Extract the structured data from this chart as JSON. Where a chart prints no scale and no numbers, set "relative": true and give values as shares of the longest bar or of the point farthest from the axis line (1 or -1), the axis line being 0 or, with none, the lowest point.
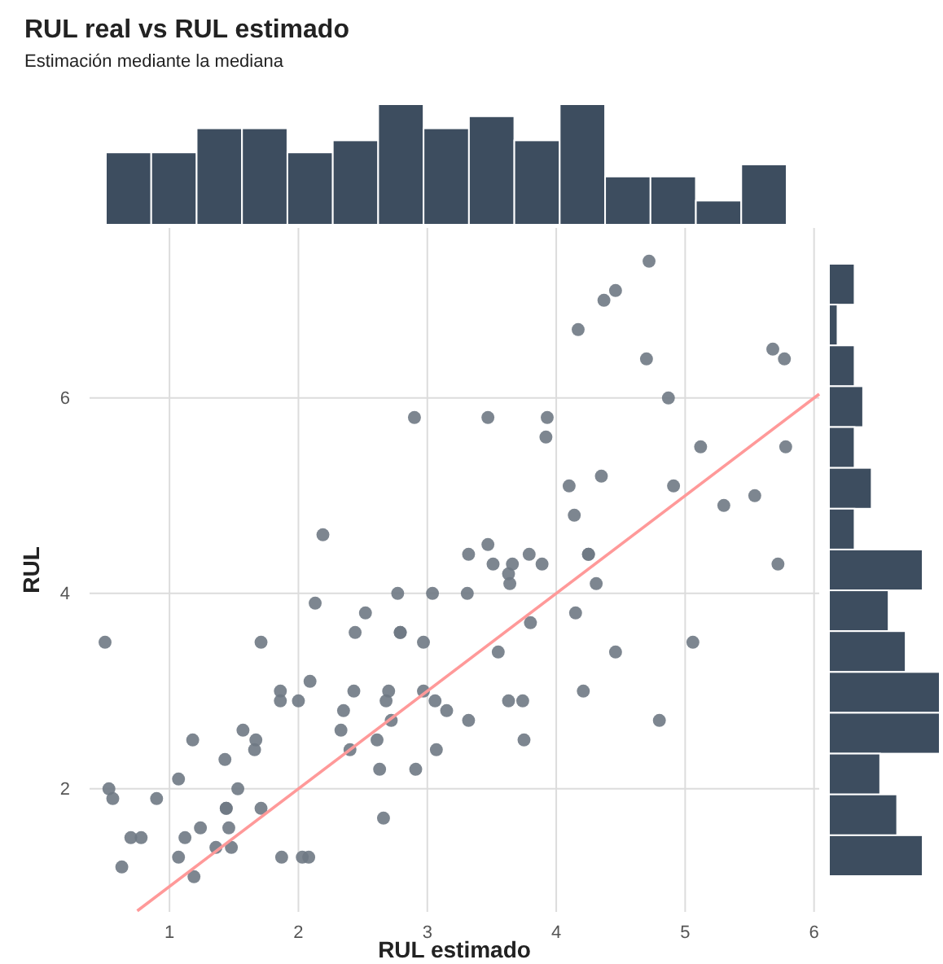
{
  "chart_data": [
    {
      "type": "scatter",
      "xlabel": "RUL estimado",
      "ylabel": "RUL",
      "xlim": [
        0.38,
        6.04
      ],
      "ylim": [
        0.74,
        7.74
      ],
      "xticks": [
        1,
        2,
        3,
        4,
        5,
        6
      ],
      "yticks": [
        2,
        4,
        6
      ],
      "grid": true,
      "series": [
        {
          "type": "scatter",
          "marker": "circle",
          "color": "#6f7984",
          "x": [
            0.5,
            0.53,
            0.56,
            0.7,
            0.78,
            0.63,
            0.9,
            1.07,
            1.07,
            1.12,
            1.19,
            1.18,
            1.24,
            1.36,
            1.43,
            1.44,
            1.44,
            1.46,
            1.48,
            1.53,
            1.57,
            1.66,
            1.67,
            1.71,
            1.71,
            1.86,
            1.86,
            1.87,
            2.0,
            2.03,
            2.08,
            2.09,
            2.13,
            2.33,
            2.35,
            2.4,
            2.43,
            2.44,
            2.52,
            2.61,
            2.63,
            2.66,
            2.68,
            2.7,
            2.72,
            2.77,
            2.79,
            2.79,
            2.91,
            2.97,
            2.97,
            3.04,
            3.06,
            3.07,
            3.15,
            3.32,
            3.31,
            3.32,
            3.51,
            3.55,
            3.63,
            3.64,
            3.66,
            3.63,
            3.74,
            3.75,
            3.79,
            3.8,
            3.89,
            4.15,
            4.21,
            4.25,
            4.25,
            4.31,
            4.46,
            4.8,
            5.06,
            5.72,
            3.47,
            3.93,
            3.92,
            4.1,
            4.14,
            4.35,
            4.17,
            4.37,
            4.46,
            4.72,
            4.7,
            4.87,
            4.91,
            5.12,
            5.3,
            5.54,
            5.68,
            5.77,
            5.78,
            3.47,
            2.9,
            2.19
          ],
          "values": [
            3.5,
            2.0,
            1.9,
            1.5,
            1.5,
            1.2,
            1.9,
            2.1,
            1.3,
            1.5,
            1.1,
            2.5,
            1.6,
            1.4,
            2.3,
            1.8,
            1.8,
            1.6,
            1.4,
            2.0,
            2.6,
            2.4,
            2.5,
            3.5,
            1.8,
            3.0,
            2.9,
            1.3,
            2.9,
            1.3,
            1.3,
            3.1,
            3.9,
            2.6,
            2.8,
            2.4,
            3.0,
            3.6,
            3.8,
            2.5,
            2.2,
            1.7,
            2.9,
            3.0,
            2.7,
            4.0,
            3.6,
            3.6,
            2.2,
            3.5,
            3.0,
            4.0,
            2.9,
            2.4,
            2.8,
            2.7,
            4.0,
            4.4,
            4.3,
            3.4,
            4.2,
            4.1,
            4.3,
            2.9,
            2.9,
            2.5,
            4.4,
            3.7,
            4.3,
            3.8,
            3.0,
            4.4,
            4.4,
            4.1,
            3.4,
            2.7,
            3.5,
            4.3,
            5.8,
            5.8,
            5.6,
            5.1,
            4.8,
            5.2,
            6.7,
            7.0,
            7.1,
            7.4,
            6.4,
            6.0,
            5.1,
            5.5,
            4.9,
            5.0,
            6.5,
            6.4,
            5.5,
            4.5,
            5.8,
            4.6
          ]
        },
        {
          "type": "line",
          "color": "#ff9999",
          "x": [
            0.75,
            6.04
          ],
          "values": [
            0.75,
            6.04
          ]
        }
      ]
    },
    {
      "type": "bar",
      "title": "RUL real vs RUL estimado",
      "subtitle": "Estimación mediante la mediana",
      "relative": true,
      "color": "#3d4d5f",
      "categories": [
        null,
        null,
        null,
        null,
        null,
        null,
        null,
        null,
        null,
        null,
        null,
        null,
        null,
        null,
        null
      ],
      "values": [
        0.6,
        0.6,
        0.8,
        0.8,
        0.6,
        0.7,
        1,
        0.8,
        0.9,
        0.7,
        1,
        0.4,
        0.4,
        0.2,
        0.5
      ]
    },
    {
      "type": "bar",
      "orientation": "horizontal",
      "relative": true,
      "color": "#3d4d5f",
      "categories": [
        null,
        null,
        null,
        null,
        null,
        null,
        null,
        null,
        null,
        null,
        null,
        null,
        null,
        null,
        null
      ],
      "values": [
        0.231,
        0.077,
        0.231,
        0.308,
        0.231,
        0.385,
        0.231,
        0.846,
        0.538,
        0.692,
        1,
        1,
        0.462,
        0.615,
        0.846
      ]
    }
  ]
}
